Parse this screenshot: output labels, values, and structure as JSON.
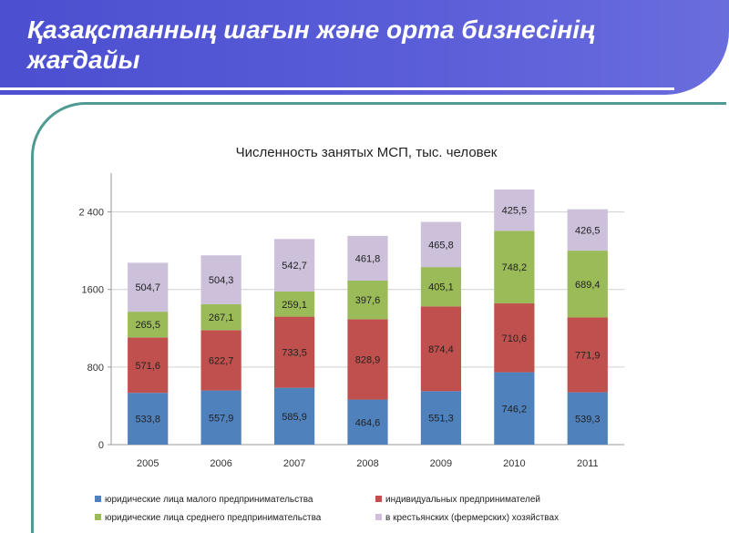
{
  "slide": {
    "title": "Қазақстанның шағын және орта бизнесінің жағдайы"
  },
  "colors": {
    "header": "#5357d4",
    "frame": "#4f9b93",
    "series": [
      "#4f81bd",
      "#c0504d",
      "#9bbb59",
      "#ccc0da"
    ]
  },
  "chart_data": {
    "type": "bar",
    "stacked": true,
    "title": "Численность занятых МСП,  тыс. человек",
    "categories": [
      "2005",
      "2006",
      "2007",
      "2008",
      "2009",
      "2010",
      "2011"
    ],
    "series": [
      {
        "name": "юридические лица малого предпринимательства",
        "values": [
          533.8,
          557.9,
          585.9,
          464.6,
          551.3,
          746.2,
          539.3
        ],
        "labels": [
          "533,8",
          "557,9",
          "585,9",
          "464,6",
          "551,3",
          "746,2",
          "539,3"
        ]
      },
      {
        "name": "индивидуальных предпринимателей",
        "values": [
          571.6,
          622.7,
          733.5,
          828.9,
          874.4,
          710.6,
          771.9
        ],
        "labels": [
          "571,6",
          "622,7",
          "733,5",
          "828,9",
          "874,4",
          "710,6",
          "771,9"
        ]
      },
      {
        "name": "юридические лица среднего предпринимательства",
        "values": [
          265.5,
          267.1,
          259.1,
          397.6,
          405.1,
          748.2,
          689.4
        ],
        "labels": [
          "265,5",
          "267,1",
          "259,1",
          "397,6",
          "405,1",
          "748,2",
          "689,4"
        ]
      },
      {
        "name": "в крестьянских (фермерских) хозяйствах",
        "values": [
          504.7,
          504.3,
          542.7,
          461.8,
          465.8,
          425.5,
          426.5
        ],
        "labels": [
          "504,7",
          "504,3",
          "542,7",
          "461,8",
          "465,8",
          "425,5",
          "426,5"
        ]
      }
    ],
    "y_ticks": [
      0,
      800,
      1600,
      2400
    ],
    "y_tick_labels": [
      "0",
      "800",
      "1600",
      "2 400"
    ],
    "ylim": [
      0,
      2800
    ],
    "grid": true,
    "legend_position": "bottom"
  }
}
